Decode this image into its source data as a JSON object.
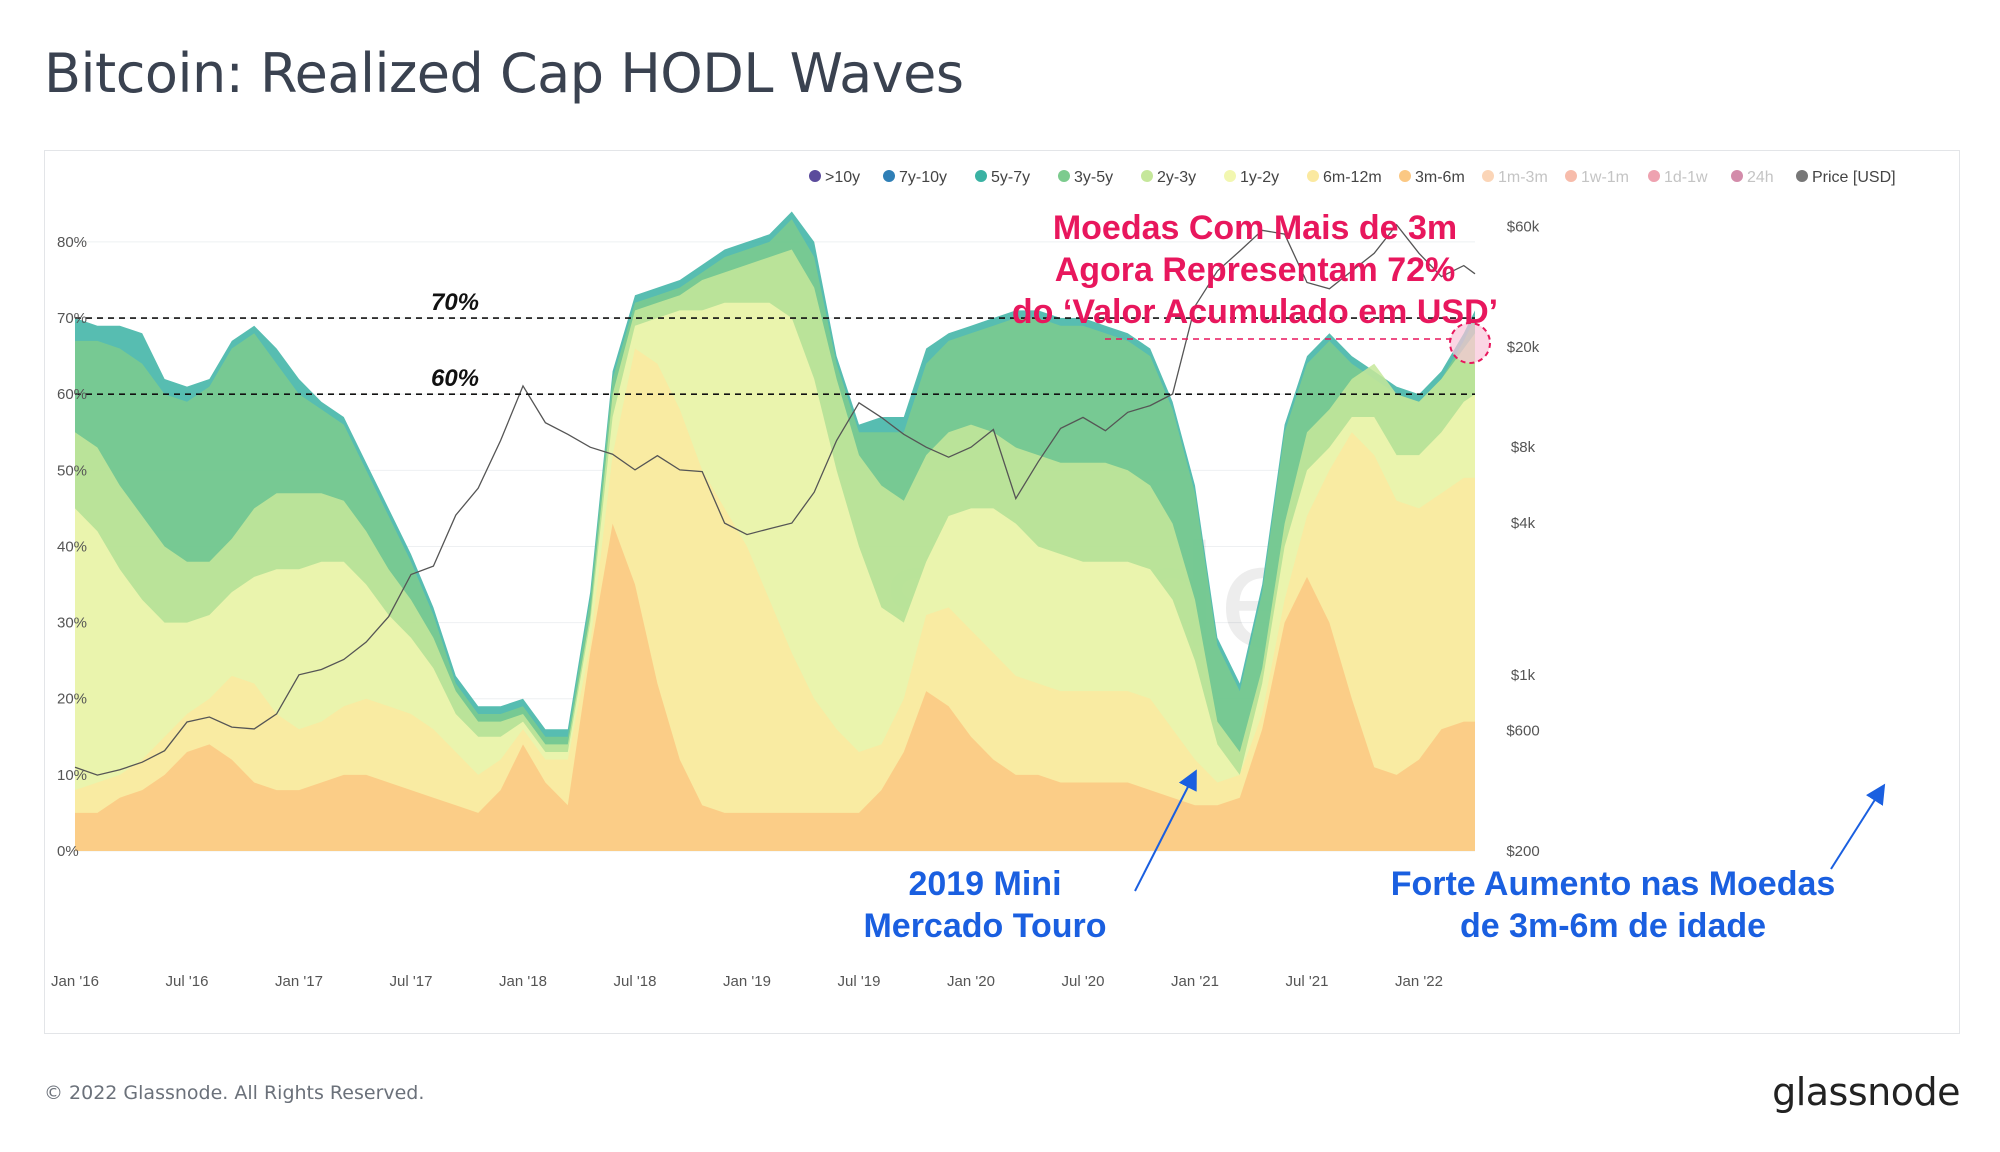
{
  "page": {
    "title": "Bitcoin: Realized Cap HODL Waves",
    "copyright": "© 2022 Glassnode. All Rights Reserved.",
    "logo": "glassnode",
    "watermark": "glassnode"
  },
  "chart_data": {
    "type": "area",
    "title": "Bitcoin: Realized Cap HODL Waves",
    "x_ticks": [
      "Jan '16",
      "Jul '16",
      "Jan '17",
      "Jul '17",
      "Jan '18",
      "Jul '18",
      "Jan '19",
      "Jul '19",
      "Jan '20",
      "Jul '20",
      "Jan '21",
      "Jul '21",
      "Jan '22"
    ],
    "y_left_ticks": [
      "0%",
      "10%",
      "20%",
      "30%",
      "40%",
      "50%",
      "60%",
      "70%",
      "80%"
    ],
    "y_left_range": [
      0,
      88
    ],
    "y_right_ticks": [
      "$200",
      "$600",
      "$1k",
      "$4k",
      "$8k",
      "$20k",
      "$60k"
    ],
    "y_right_tick_values": [
      200,
      600,
      1000,
      4000,
      8000,
      20000,
      60000
    ],
    "y_right_scale": "log",
    "legend": [
      {
        "name": ">10y",
        "color": "#5b4b9c",
        "active": true
      },
      {
        "name": "7y-10y",
        "color": "#2f7fb6",
        "active": true
      },
      {
        "name": "5y-7y",
        "color": "#3ab2a3",
        "active": true
      },
      {
        "name": "3y-5y",
        "color": "#7ccb8e",
        "active": true
      },
      {
        "name": "2y-3y",
        "color": "#c5e79a",
        "active": true
      },
      {
        "name": "1y-2y",
        "color": "#f2f7b0",
        "active": true
      },
      {
        "name": "6m-12m",
        "color": "#fbe9a0",
        "active": true
      },
      {
        "name": "3m-6m",
        "color": "#fbc883",
        "active": true
      },
      {
        "name": "1m-3m",
        "color": "#f6a15f",
        "active": false
      },
      {
        "name": "1w-1m",
        "color": "#ee6a45",
        "active": false
      },
      {
        "name": "1d-1w",
        "color": "#d9304f",
        "active": false
      },
      {
        "name": "24h",
        "color": "#9e0142",
        "active": false
      },
      {
        "name": "Price [USD]",
        "color": "#777777",
        "active": true
      }
    ],
    "legend_position": "top-right",
    "x": [
      2016.0,
      2016.1,
      2016.2,
      2016.3,
      2016.4,
      2016.5,
      2016.6,
      2016.7,
      2016.8,
      2016.9,
      2017.0,
      2017.1,
      2017.2,
      2017.3,
      2017.4,
      2017.5,
      2017.6,
      2017.7,
      2017.8,
      2017.9,
      2018.0,
      2018.1,
      2018.2,
      2018.3,
      2018.4,
      2018.5,
      2018.6,
      2018.7,
      2018.8,
      2018.9,
      2019.0,
      2019.1,
      2019.2,
      2019.3,
      2019.4,
      2019.5,
      2019.6,
      2019.7,
      2019.8,
      2019.9,
      2020.0,
      2020.1,
      2020.2,
      2020.3,
      2020.4,
      2020.5,
      2020.6,
      2020.7,
      2020.8,
      2020.9,
      2021.0,
      2021.1,
      2021.2,
      2021.3,
      2021.4,
      2021.5,
      2021.6,
      2021.7,
      2021.8,
      2021.9,
      2022.0,
      2022.1,
      2022.2,
      2022.25
    ],
    "series": [
      {
        "name": "3m-6m",
        "color": "#fbc883",
        "values": [
          5,
          5,
          7,
          8,
          10,
          13,
          14,
          12,
          9,
          8,
          8,
          9,
          10,
          10,
          9,
          8,
          7,
          6,
          5,
          8,
          14,
          9,
          6,
          26,
          43,
          35,
          22,
          12,
          6,
          5,
          5,
          5,
          5,
          5,
          5,
          5,
          8,
          13,
          21,
          19,
          15,
          12,
          10,
          10,
          9,
          9,
          9,
          9,
          8,
          7,
          6,
          6,
          7,
          16,
          30,
          36,
          30,
          20,
          11,
          10,
          12,
          16,
          17,
          17
        ]
      },
      {
        "name": "6m-12m",
        "color": "#fbe9a0",
        "values": [
          8,
          9,
          10,
          12,
          15,
          18,
          20,
          23,
          22,
          18,
          16,
          17,
          19,
          20,
          19,
          18,
          16,
          13,
          10,
          12,
          16,
          12,
          12,
          27,
          52,
          66,
          64,
          58,
          50,
          45,
          40,
          33,
          26,
          20,
          16,
          13,
          14,
          20,
          31,
          32,
          29,
          26,
          23,
          22,
          21,
          21,
          21,
          21,
          20,
          16,
          12,
          9,
          10,
          18,
          33,
          44,
          50,
          55,
          52,
          46,
          45,
          47,
          49,
          49
        ]
      },
      {
        "name": "1y-2y",
        "color": "#f2f7b0",
        "values": [
          45,
          42,
          37,
          33,
          30,
          30,
          31,
          34,
          36,
          37,
          37,
          38,
          38,
          35,
          31,
          28,
          24,
          18,
          15,
          15,
          17,
          13,
          13,
          30,
          57,
          69,
          70,
          71,
          71,
          72,
          72,
          72,
          70,
          62,
          50,
          40,
          32,
          30,
          38,
          44,
          45,
          45,
          43,
          40,
          39,
          38,
          38,
          38,
          37,
          33,
          25,
          14,
          10,
          22,
          40,
          50,
          53,
          57,
          57,
          52,
          52,
          55,
          59,
          60
        ]
      },
      {
        "name": "2y-3y",
        "color": "#c5e79a",
        "values": [
          55,
          53,
          48,
          44,
          40,
          38,
          38,
          41,
          45,
          47,
          47,
          47,
          46,
          42,
          37,
          33,
          28,
          21,
          17,
          17,
          18,
          14,
          14,
          31,
          60,
          71,
          72,
          73,
          75,
          76,
          77,
          78,
          79,
          74,
          62,
          52,
          48,
          46,
          52,
          55,
          56,
          55,
          53,
          52,
          51,
          51,
          51,
          50,
          48,
          43,
          33,
          17,
          13,
          24,
          43,
          55,
          58,
          62,
          64,
          60,
          59,
          62,
          66,
          68
        ]
      },
      {
        "name": "3y-5y",
        "color": "#7ccb8e",
        "values": [
          67,
          67,
          66,
          64,
          60,
          59,
          61,
          66,
          68,
          64,
          60,
          58,
          56,
          50,
          44,
          38,
          31,
          22,
          18,
          18,
          19,
          15,
          15,
          33,
          62,
          72,
          73,
          74,
          76,
          78,
          79,
          80,
          83,
          78,
          64,
          55,
          55,
          55,
          64,
          67,
          68,
          69,
          70,
          70,
          69,
          69,
          68,
          67,
          65,
          58,
          47,
          27,
          21,
          34,
          55,
          64,
          67,
          64,
          62,
          60,
          59,
          62,
          67,
          70
        ]
      },
      {
        "name": "5y-7y",
        "color": "#3ab2a3",
        "values": [
          70,
          69,
          69,
          68,
          62,
          61,
          62,
          67,
          69,
          66,
          62,
          59,
          57,
          51,
          45,
          39,
          32,
          23,
          19,
          19,
          20,
          16,
          16,
          34,
          63,
          73,
          74,
          75,
          77,
          79,
          80,
          81,
          84,
          80,
          65,
          56,
          57,
          57,
          66,
          68,
          69,
          70,
          71,
          71,
          70,
          70,
          69,
          68,
          66,
          59,
          48,
          28,
          22,
          35,
          56,
          65,
          68,
          65,
          63,
          61,
          60,
          63,
          68,
          71
        ]
      }
    ],
    "price_usd": [
      430,
      400,
      420,
      450,
      500,
      650,
      680,
      620,
      610,
      700,
      1000,
      1050,
      1150,
      1350,
      1700,
      2500,
      2700,
      4300,
      5500,
      8500,
      14000,
      10000,
      9000,
      8000,
      7500,
      6500,
      7400,
      6500,
      6400,
      4000,
      3600,
      3800,
      4000,
      5300,
      8500,
      12000,
      10500,
      9000,
      8000,
      7300,
      8000,
      9400,
      5000,
      7000,
      9500,
      10500,
      9300,
      11000,
      11700,
      13000,
      29000,
      40000,
      48000,
      58000,
      56000,
      36000,
      34000,
      40000,
      47000,
      61000,
      47000,
      38000,
      42000,
      39000
    ],
    "annotations": [
      {
        "text": "70%",
        "y_percent": 70
      },
      {
        "text": "60%",
        "y_percent": 60
      },
      {
        "text_lines": [
          "Moedas Com Mais de 3m",
          "Agora Representam 72%",
          "do ‘Valor Acumulado em USD’"
        ],
        "color": "#e8175d"
      },
      {
        "text_lines": [
          "2019 Mini",
          "Mercado Touro"
        ],
        "color": "#1a5fe0"
      },
      {
        "text_lines": [
          "Forte Aumento nas Moedas",
          "de 3m-6m de idade"
        ],
        "color": "#1a5fe0"
      }
    ]
  }
}
